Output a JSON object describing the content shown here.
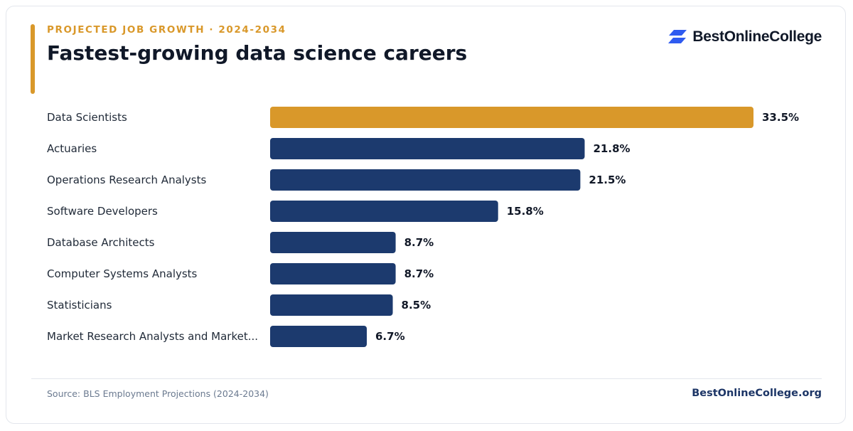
{
  "header": {
    "eyebrow": "PROJECTED JOB GROWTH · 2024-2034",
    "title": "Fastest-growing data science careers"
  },
  "brand": {
    "logo_text": "BestOnlineCollege",
    "logo_icon": "stacked-parallelogram-icon",
    "logo_color": "#2f5bf0"
  },
  "colors": {
    "highlight": "#d9982a",
    "bar": "#1c3a6e"
  },
  "chart_data": {
    "type": "bar",
    "orientation": "horizontal",
    "categories": [
      "Data Scientists",
      "Actuaries",
      "Operations Research Analysts",
      "Software Developers",
      "Database Architects",
      "Computer Systems Analysts",
      "Statisticians",
      "Market Research Analysts and Market..."
    ],
    "values": [
      33.5,
      21.8,
      21.5,
      15.8,
      8.7,
      8.7,
      8.5,
      6.7
    ],
    "value_labels": [
      "33.5%",
      "21.8%",
      "21.5%",
      "15.8%",
      "8.7%",
      "8.7%",
      "8.5%",
      "6.7%"
    ],
    "highlighted_category": "Data Scientists",
    "title": "Fastest-growing data science careers",
    "xlabel": "",
    "ylabel": "",
    "grid": false
  },
  "footer": {
    "source": "Source: BLS Employment Projections (2024-2034)",
    "site": "BestOnlineCollege.org"
  }
}
